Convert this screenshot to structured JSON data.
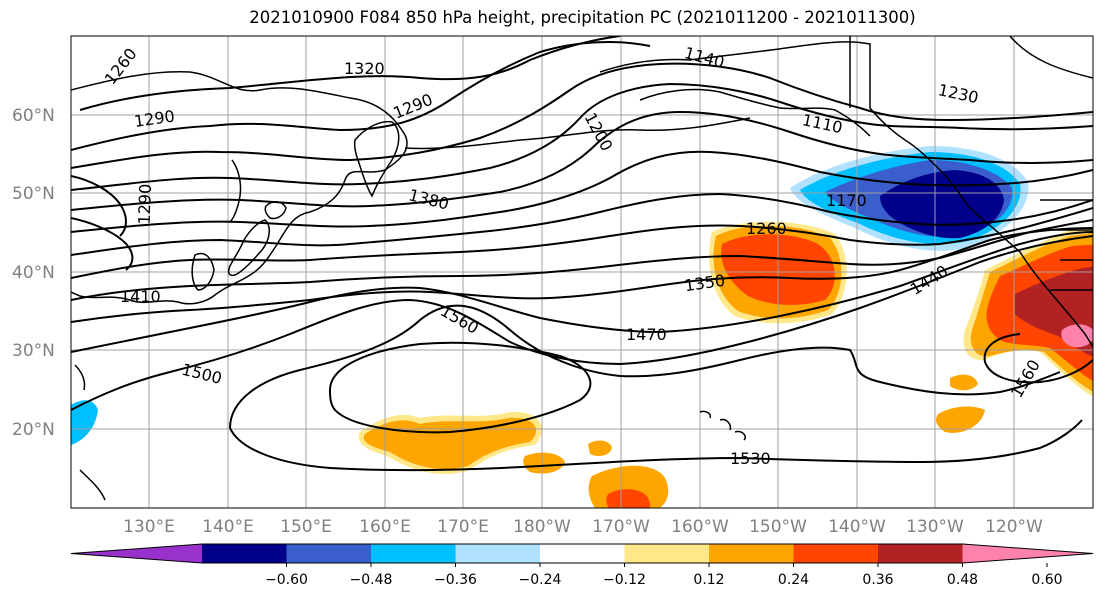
{
  "title": "2021010900 F084 850 hPa height, precipitation PC (2021011200 - 2021011300)",
  "latitude_labels": [
    "60°N",
    "50°N",
    "40°N",
    "30°N",
    "20°N"
  ],
  "longitude_labels": [
    "130°E",
    "140°E",
    "150°E",
    "160°E",
    "170°E",
    "180°W",
    "170°W",
    "160°W",
    "150°W",
    "140°W",
    "130°W",
    "120°W"
  ],
  "contour_labels": [
    "1260",
    "1320",
    "1290",
    "1290",
    "1140",
    "1230",
    "1200",
    "1110",
    "1290",
    "1380",
    "1170",
    "1260",
    "1410",
    "1350",
    "1440",
    "1560",
    "1470",
    "1500",
    "1560",
    "1530"
  ],
  "colorbar": {
    "tick_labels": [
      "−0.60",
      "−0.48",
      "−0.36",
      "−0.24",
      "−0.12",
      "0.12",
      "0.24",
      "0.36",
      "0.48",
      "0.60"
    ],
    "colors": [
      "#9932CC",
      "#00008B",
      "#3A5FCD",
      "#00BFFF",
      "#B0E2FF",
      "#FFFFFF",
      "#FFE78A",
      "#FFA500",
      "#FF4500",
      "#B22222",
      "#FF82AB"
    ]
  },
  "shading_colors": {
    "light_blue": "#B0E2FF",
    "cyan": "#00BFFF",
    "medium_blue": "#3A5FCD",
    "dark_blue": "#00008B",
    "yellow": "#FFE78A",
    "orange": "#FFA500",
    "red_orange": "#FF4500",
    "dark_red": "#B22222",
    "pink": "#FF82AB"
  }
}
